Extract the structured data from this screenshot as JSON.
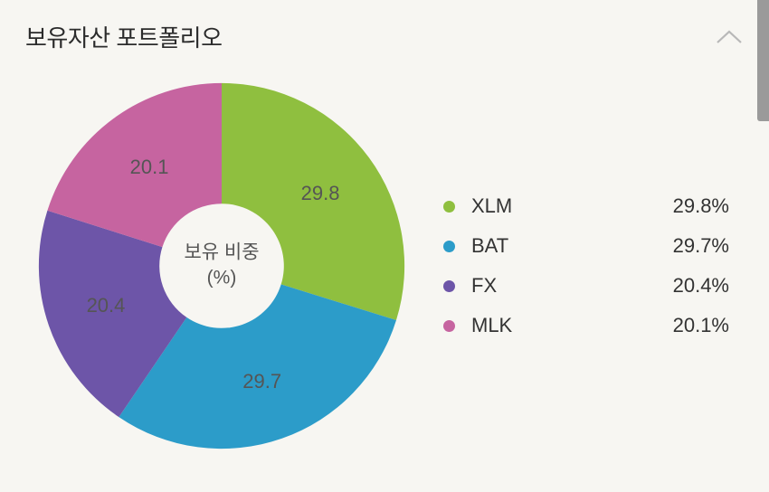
{
  "header": {
    "title": "보유자산 포트폴리오"
  },
  "chart": {
    "type": "pie",
    "center_label_line1": "보유 비중",
    "center_label_line2": "(%)",
    "background_color": "#f7f6f2",
    "inner_radius_pct": 32,
    "outer_radius_pct": 94,
    "slices": [
      {
        "name": "XLM",
        "value": 29.8,
        "label": "29.8",
        "pct_label": "29.8%",
        "color": "#8fbf3f"
      },
      {
        "name": "BAT",
        "value": 29.7,
        "label": "29.7",
        "pct_label": "29.7%",
        "color": "#2c9cc9"
      },
      {
        "name": "FX",
        "value": 20.4,
        "label": "20.4",
        "pct_label": "20.4%",
        "color": "#6d55a8"
      },
      {
        "name": "MLK",
        "value": 20.1,
        "label": "20.1",
        "pct_label": "20.1%",
        "color": "#c664a0"
      }
    ],
    "label_fontsize": 22,
    "label_color": "#555555",
    "center_fontsize": 21
  },
  "legend": {
    "name_fontsize": 22,
    "pct_fontsize": 22,
    "text_color": "#333333",
    "dot_size": 13
  },
  "scrollbar": {
    "color": "#9a9a9a",
    "width": 13,
    "height": 134
  }
}
